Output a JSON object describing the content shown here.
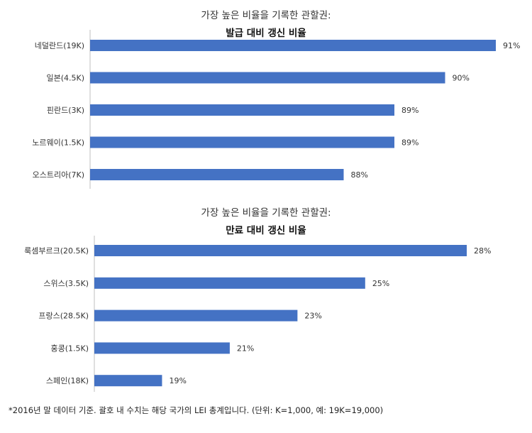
{
  "chart_data": [
    {
      "type": "bar",
      "orientation": "horizontal",
      "title_line1": "가장 높은 비율을 기록한 관할권:",
      "title_line2": "발급 대비 갱신 비율",
      "categories": [
        "네덜란드(19K)",
        "일본(4.5K)",
        "핀란드(3K)",
        "노르웨이(1.5K)",
        "오스트리아(7K)"
      ],
      "values": [
        91,
        90,
        89,
        89,
        88
      ],
      "data_labels": [
        "91%",
        "90%",
        "89%",
        "89%",
        "88%"
      ],
      "xlim": [
        83,
        91
      ],
      "bar_color": "#4472C4"
    },
    {
      "type": "bar",
      "orientation": "horizontal",
      "title_line1": "가장 높은 비율을 기록한 관할권:",
      "title_line2": "만료 대비 갱신 비율",
      "categories": [
        "룩셈부르크(20.5K)",
        "스위스(3.5K)",
        "프랑스(28.5K)",
        "홍콩(1.5K)",
        "스페인(18K)"
      ],
      "values": [
        28,
        25,
        23,
        21,
        19
      ],
      "data_labels": [
        "28%",
        "25%",
        "23%",
        "21%",
        "19%"
      ],
      "xlim": [
        17,
        28
      ],
      "bar_color": "#4472C4"
    }
  ],
  "footnote": "*2016년 말 데이터 기준. 괄호 내 수치는 해당 국가의 LEI 총계입니다. (단위: K=1,000, 예: 19K=19,000)"
}
